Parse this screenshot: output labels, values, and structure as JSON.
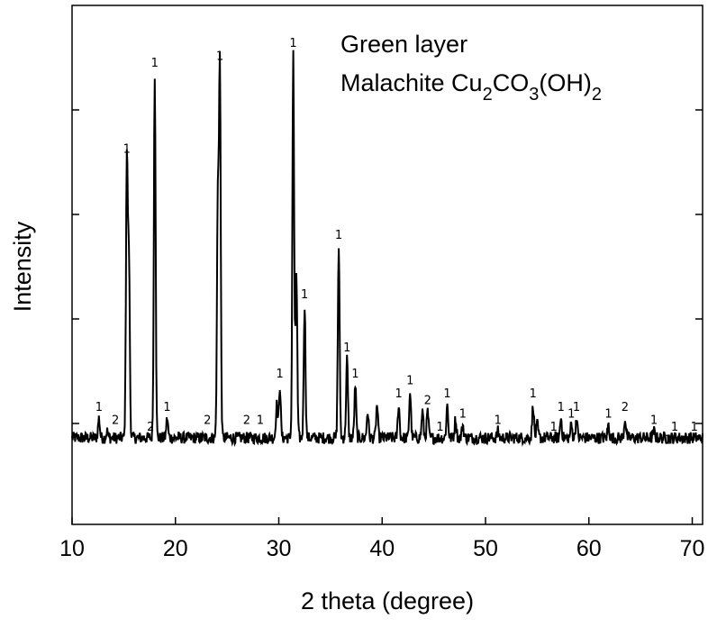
{
  "chart_data": {
    "type": "line",
    "xlabel": "2 theta (degree)",
    "ylabel": "Intensity",
    "xlim": [
      10,
      71
    ],
    "x_ticks": [
      10,
      20,
      30,
      40,
      50,
      60,
      70
    ],
    "y_ticks_labeled": false,
    "grid": false,
    "legend_placement": "top-right",
    "legend": {
      "line1": "Green layer",
      "line2_prefix": "Malachite Cu",
      "line2_sub1": "2",
      "line2_mid1": "CO",
      "line2_sub2": "3",
      "line2_mid2": "(OH)",
      "line2_sub3": "2"
    },
    "line_color": "#000000",
    "baseline": 0.03,
    "peaks": [
      {
        "x": 12.6,
        "y": 0.06,
        "label": "1"
      },
      {
        "x": 13.4,
        "y": 0.04,
        "label": ""
      },
      {
        "x": 15.3,
        "y": 0.45,
        "label": "1"
      },
      {
        "x": 15.5,
        "y": 0.3,
        "label": ""
      },
      {
        "x": 17.6,
        "y": 0.03,
        "label": "2"
      },
      {
        "x": 18.0,
        "y": 0.58,
        "label": "1"
      },
      {
        "x": 19.2,
        "y": 0.06,
        "label": "1"
      },
      {
        "x": 24.3,
        "y": 0.59,
        "label": "1"
      },
      {
        "x": 24.1,
        "y": 0.38,
        "label": ""
      },
      {
        "x": 27.0,
        "y": 0.03,
        "label": ""
      },
      {
        "x": 29.8,
        "y": 0.08,
        "label": ""
      },
      {
        "x": 30.1,
        "y": 0.11,
        "label": "1"
      },
      {
        "x": 31.4,
        "y": 0.61,
        "label": "1"
      },
      {
        "x": 31.7,
        "y": 0.28,
        "label": ""
      },
      {
        "x": 32.5,
        "y": 0.23,
        "label": "1"
      },
      {
        "x": 35.8,
        "y": 0.32,
        "label": "1"
      },
      {
        "x": 36.6,
        "y": 0.15,
        "label": "1"
      },
      {
        "x": 37.4,
        "y": 0.11,
        "label": "1"
      },
      {
        "x": 38.6,
        "y": 0.07,
        "label": ""
      },
      {
        "x": 39.5,
        "y": 0.08,
        "label": ""
      },
      {
        "x": 41.6,
        "y": 0.08,
        "label": "1"
      },
      {
        "x": 42.7,
        "y": 0.1,
        "label": "1"
      },
      {
        "x": 43.9,
        "y": 0.07,
        "label": ""
      },
      {
        "x": 44.4,
        "y": 0.07,
        "label": "2"
      },
      {
        "x": 46.3,
        "y": 0.08,
        "label": "1"
      },
      {
        "x": 47.1,
        "y": 0.06,
        "label": ""
      },
      {
        "x": 47.8,
        "y": 0.05,
        "label": "1"
      },
      {
        "x": 51.2,
        "y": 0.04,
        "label": "1"
      },
      {
        "x": 54.6,
        "y": 0.08,
        "label": "1"
      },
      {
        "x": 55.0,
        "y": 0.05,
        "label": ""
      },
      {
        "x": 57.3,
        "y": 0.06,
        "label": "1"
      },
      {
        "x": 58.3,
        "y": 0.05,
        "label": "1"
      },
      {
        "x": 58.8,
        "y": 0.06,
        "label": "1"
      },
      {
        "x": 61.9,
        "y": 0.05,
        "label": "1"
      },
      {
        "x": 63.5,
        "y": 0.06,
        "label": "2"
      },
      {
        "x": 66.3,
        "y": 0.04,
        "label": "1"
      },
      {
        "x": 68.3,
        "y": 0.03,
        "label": "1"
      },
      {
        "x": 70.2,
        "y": 0.03,
        "label": "1"
      }
    ],
    "extra_labels": [
      {
        "x": 14.2,
        "y": 0.04,
        "label": "2"
      },
      {
        "x": 23.1,
        "y": 0.04,
        "label": "2"
      },
      {
        "x": 26.9,
        "y": 0.04,
        "label": "2"
      },
      {
        "x": 28.2,
        "y": 0.04,
        "label": "1"
      },
      {
        "x": 45.6,
        "y": 0.03,
        "label": "1"
      },
      {
        "x": 50.0,
        "y": 0.01,
        "label": "1"
      },
      {
        "x": 56.6,
        "y": 0.03,
        "label": "1"
      },
      {
        "x": 67.6,
        "y": 0.01,
        "label": "1"
      }
    ]
  }
}
